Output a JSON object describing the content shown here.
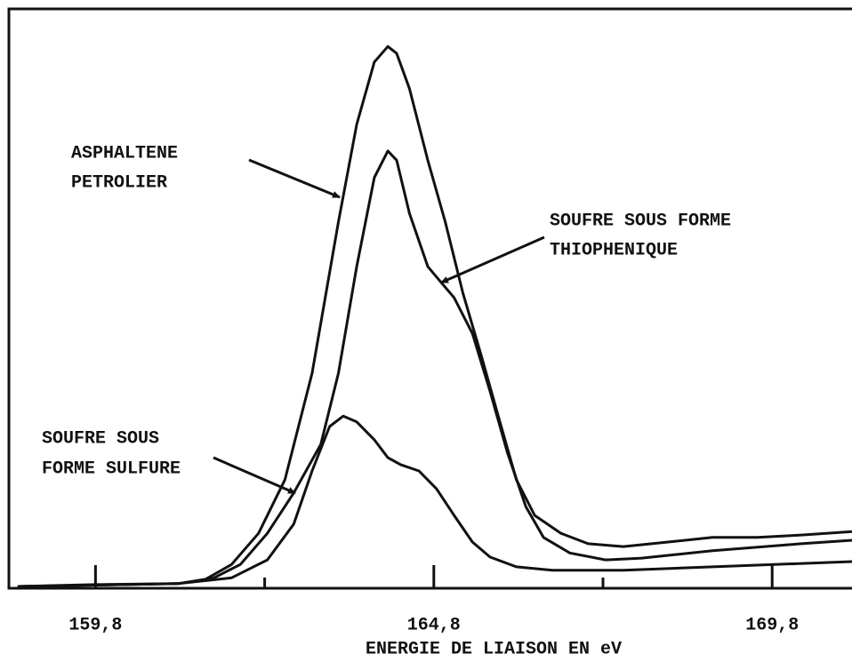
{
  "chart_data": {
    "type": "line",
    "x_label": "ENERGIE DE LIAISON EN eV",
    "xlim": [
      158.52,
      170.98
    ],
    "ylim": [
      0,
      100
    ],
    "xticks": [
      {
        "value": 159.8,
        "label": "159,8"
      },
      {
        "value": 164.8,
        "label": "164,8"
      },
      {
        "value": 169.8,
        "label": "169,8"
      }
    ],
    "minor_xticks": [
      162.3,
      167.3
    ],
    "series": [
      {
        "name": "ASPHALTENE PETROLIER",
        "color": "#111111",
        "x": [
          158.65,
          159.71,
          161.02,
          161.42,
          161.81,
          162.21,
          162.6,
          163.0,
          163.39,
          163.66,
          163.92,
          164.12,
          164.25,
          164.44,
          164.71,
          164.97,
          165.23,
          165.5,
          165.76,
          166.02,
          166.29,
          166.68,
          167.08,
          167.6,
          168.26,
          168.92,
          169.58,
          170.23,
          170.98
        ],
        "values": [
          0,
          0.3,
          0.5,
          1.2,
          3.8,
          9.2,
          18.5,
          36.9,
          63.1,
          80,
          90.8,
          93.5,
          92.3,
          86.2,
          73.8,
          63.1,
          50.8,
          40,
          29.2,
          18.5,
          12.3,
          9.2,
          7.4,
          6.9,
          7.7,
          8.5,
          8.5,
          8.9,
          9.5
        ]
      },
      {
        "name": "SOUFRE SOUS FORME THIOPHENIQUE",
        "color": "#111111",
        "x": [
          158.65,
          161.02,
          161.55,
          161.94,
          162.34,
          162.73,
          163.13,
          163.39,
          163.66,
          163.92,
          164.12,
          164.25,
          164.44,
          164.71,
          164.91,
          165.1,
          165.37,
          165.63,
          165.89,
          166.16,
          166.42,
          166.81,
          167.34,
          167.87,
          168.92,
          170.23,
          170.98
        ],
        "values": [
          0,
          0.5,
          1.5,
          3.8,
          9.2,
          16.2,
          24.6,
          36.9,
          55.4,
          70.8,
          75.4,
          73.8,
          64.6,
          55.4,
          52.6,
          50,
          43.8,
          33.8,
          23.1,
          13.8,
          8.5,
          5.8,
          4.6,
          4.9,
          6.2,
          7.4,
          8
        ]
      },
      {
        "name": "SOUFRE SOUS FORME SULFURE",
        "color": "#111111",
        "x": [
          158.65,
          161.02,
          161.81,
          162.34,
          162.73,
          163.0,
          163.26,
          163.46,
          163.66,
          163.92,
          164.12,
          164.31,
          164.58,
          164.84,
          165.1,
          165.37,
          165.63,
          166.02,
          166.55,
          167.6,
          168.92,
          170.98
        ],
        "values": [
          0,
          0.5,
          1.5,
          4.6,
          10.8,
          20,
          27.7,
          29.5,
          28.5,
          25.4,
          22.3,
          21.1,
          20,
          16.9,
          12.3,
          7.7,
          5.1,
          3.4,
          2.8,
          2.8,
          3.4,
          4.3
        ]
      }
    ],
    "annotations": [
      {
        "lines": [
          "ASPHALTENE",
          "PETROLIER"
        ]
      },
      {
        "lines": [
          "SOUFRE SOUS FORME",
          "THIOPHENIQUE"
        ]
      },
      {
        "lines": [
          "SOUFRE SOUS",
          "FORME SULFURE"
        ]
      }
    ]
  }
}
